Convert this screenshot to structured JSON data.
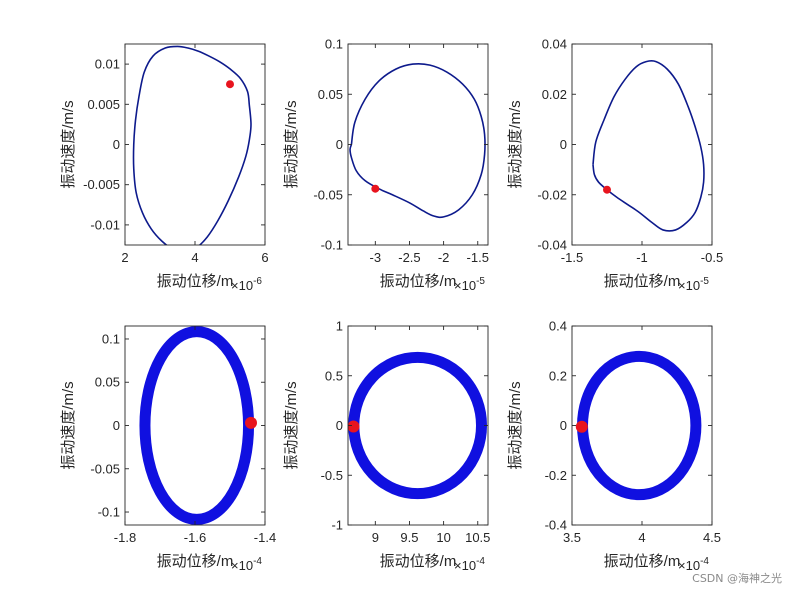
{
  "watermark": "CSDN @海神之光",
  "colors": {
    "axis": "#262626",
    "dark_curve": "#0d1a8c",
    "bright_curve": "#1010e0",
    "marker": "#e8141e"
  },
  "chart_data": [
    {
      "type": "line",
      "xlabel": "振动位移/m",
      "ylabel": "振动速度/m/s",
      "x_exponent": "×10",
      "x_exp_power": "-6",
      "xlim": [
        2.0,
        6.0
      ],
      "ylim": [
        -0.0125,
        0.0125
      ],
      "xticks": [
        2,
        4,
        6
      ],
      "xtick_labels": [
        "2",
        "4",
        "6"
      ],
      "yticks": [
        -0.01,
        -0.005,
        0,
        0.005,
        0.01
      ],
      "ytick_labels": [
        "-0.01",
        "-0.005",
        "0",
        "0.005",
        "0.01"
      ],
      "series": [
        {
          "name": "trajectory",
          "style": "thin",
          "x": [
            5.55,
            5.5,
            5.3,
            5.0,
            4.7,
            4.4,
            4.1,
            3.8,
            3.5,
            3.15,
            2.8,
            2.55,
            2.4,
            2.3,
            2.25,
            2.25,
            2.32,
            2.5,
            2.75,
            3.05,
            3.4,
            3.75,
            4.05,
            4.35,
            4.65,
            4.95,
            5.25,
            5.45,
            5.55,
            5.6,
            5.55
          ],
          "y": [
            0.005,
            0.0066,
            0.0082,
            0.0094,
            0.0103,
            0.011,
            0.0116,
            0.012,
            0.0122,
            0.012,
            0.011,
            0.009,
            0.006,
            0.003,
            0.0,
            -0.003,
            -0.006,
            -0.0085,
            -0.0105,
            -0.012,
            -0.0131,
            -0.0133,
            -0.0128,
            -0.0115,
            -0.0095,
            -0.007,
            -0.004,
            -0.0015,
            0.0005,
            0.0025,
            0.005
          ]
        }
      ],
      "marker": {
        "x": 5.0,
        "y": 0.0075
      }
    },
    {
      "type": "line",
      "xlabel": "振动位移/m",
      "ylabel": "振动速度/m/s",
      "x_exponent": "×10",
      "x_exp_power": "-5",
      "xlim": [
        -3.4,
        -1.35
      ],
      "ylim": [
        -0.1,
        0.1
      ],
      "xticks": [
        -3,
        -2.5,
        -2,
        -1.5
      ],
      "xtick_labels": [
        "-3",
        "-2.5",
        "-2",
        "-1.5"
      ],
      "yticks": [
        -0.1,
        -0.05,
        0,
        0.05,
        0.1
      ],
      "ytick_labels": [
        "-0.1",
        "-0.05",
        "0",
        "0.05",
        "0.1"
      ],
      "series": [
        {
          "name": "trajectory",
          "style": "thin",
          "x": [
            -3.35,
            -3.3,
            -3.15,
            -2.95,
            -2.7,
            -2.45,
            -2.2,
            -1.95,
            -1.72,
            -1.55,
            -1.45,
            -1.4,
            -1.4,
            -1.45,
            -1.58,
            -1.78,
            -2.0,
            -2.15,
            -2.3,
            -2.5,
            -2.75,
            -2.95,
            -3.15,
            -3.28,
            -3.35,
            -3.37,
            -3.35
          ],
          "y": [
            0.0,
            0.022,
            0.045,
            0.063,
            0.075,
            0.08,
            0.079,
            0.072,
            0.06,
            0.045,
            0.028,
            0.01,
            -0.01,
            -0.03,
            -0.05,
            -0.065,
            -0.072,
            -0.071,
            -0.066,
            -0.058,
            -0.05,
            -0.044,
            -0.036,
            -0.026,
            -0.013,
            -0.005,
            0.0
          ]
        }
      ],
      "marker": {
        "x": -3.0,
        "y": -0.044
      }
    },
    {
      "type": "line",
      "xlabel": "振动位移/m",
      "ylabel": "振动速度/m/s",
      "x_exponent": "×10",
      "x_exp_power": "-5",
      "xlim": [
        -1.5,
        -0.5
      ],
      "ylim": [
        -0.04,
        0.04
      ],
      "xticks": [
        -1.5,
        -1,
        -0.5
      ],
      "xtick_labels": [
        "-1.5",
        "-1",
        "-0.5"
      ],
      "yticks": [
        -0.04,
        -0.02,
        0,
        0.02,
        0.04
      ],
      "ytick_labels": [
        "-0.04",
        "-0.02",
        "0",
        "0.02",
        "0.04"
      ],
      "series": [
        {
          "name": "trajectory",
          "style": "thin",
          "x": [
            -1.35,
            -1.33,
            -1.27,
            -1.2,
            -1.12,
            -1.04,
            -0.97,
            -0.9,
            -0.82,
            -0.74,
            -0.67,
            -0.62,
            -0.58,
            -0.56,
            -0.56,
            -0.58,
            -0.62,
            -0.68,
            -0.76,
            -0.85,
            -0.93,
            -1.02,
            -1.1,
            -1.18,
            -1.25,
            -1.31,
            -1.34,
            -1.35
          ],
          "y": [
            -0.008,
            0.001,
            0.01,
            0.019,
            0.026,
            0.031,
            0.033,
            0.033,
            0.03,
            0.024,
            0.015,
            0.007,
            -0.001,
            -0.008,
            -0.015,
            -0.021,
            -0.027,
            -0.031,
            -0.034,
            -0.034,
            -0.031,
            -0.027,
            -0.024,
            -0.021,
            -0.018,
            -0.015,
            -0.012,
            -0.008
          ]
        }
      ],
      "marker": {
        "x": -1.25,
        "y": -0.018
      }
    },
    {
      "type": "line",
      "xlabel": "振动位移/m",
      "ylabel": "振动速度/m/s",
      "x_exponent": "×10",
      "x_exp_power": "-4",
      "xlim": [
        -1.8,
        -1.4
      ],
      "ylim": [
        -0.115,
        0.115
      ],
      "xticks": [
        -1.8,
        -1.6,
        -1.4
      ],
      "xtick_labels": [
        "-1.8",
        "-1.6",
        "-1.4"
      ],
      "yticks": [
        -0.1,
        -0.05,
        0,
        0.05,
        0.1
      ],
      "ytick_labels": [
        "-0.1",
        "-0.05",
        "0",
        "0.05",
        "0.1"
      ],
      "series": [
        {
          "name": "trajectory",
          "style": "band",
          "center_x": -1.595,
          "radius_x": 0.148,
          "center_y": 0.0,
          "radius_y": 0.1085
        }
      ],
      "marker": {
        "x": -1.44,
        "y": 0.003
      }
    },
    {
      "type": "line",
      "xlabel": "振动位移/m",
      "ylabel": "振动速度/m/s",
      "x_exponent": "×10",
      "x_exp_power": "-4",
      "xlim": [
        8.6,
        10.65
      ],
      "ylim": [
        -1.0,
        1.0
      ],
      "xticks": [
        9,
        9.5,
        10,
        10.5
      ],
      "xtick_labels": [
        "9",
        "9.5",
        "10",
        "10.5"
      ],
      "yticks": [
        -1,
        -0.5,
        0,
        0.5,
        1
      ],
      "ytick_labels": [
        "-1",
        "-0.5",
        "0",
        "0.5",
        "1"
      ],
      "series": [
        {
          "name": "trajectory",
          "style": "band",
          "center_x": 9.62,
          "radius_x": 0.935,
          "center_y": 0.0,
          "radius_y": 0.685
        }
      ],
      "marker": {
        "x": 8.68,
        "y": -0.01
      }
    },
    {
      "type": "line",
      "xlabel": "振动位移/m",
      "ylabel": "振动速度/m/s",
      "x_exponent": "×10",
      "x_exp_power": "-4",
      "xlim": [
        3.5,
        4.5
      ],
      "ylim": [
        -0.4,
        0.4
      ],
      "xticks": [
        3.5,
        4,
        4.5
      ],
      "xtick_labels": [
        "3.5",
        "4",
        "4.5"
      ],
      "yticks": [
        -0.4,
        -0.2,
        0,
        0.2,
        0.4
      ],
      "ytick_labels": [
        "-0.4",
        "-0.2",
        "0",
        "0.2",
        "0.4"
      ],
      "series": [
        {
          "name": "trajectory",
          "style": "band",
          "center_x": 3.98,
          "radius_x": 0.405,
          "center_y": 0.0,
          "radius_y": 0.278
        }
      ],
      "marker": {
        "x": 3.57,
        "y": -0.005
      }
    }
  ]
}
